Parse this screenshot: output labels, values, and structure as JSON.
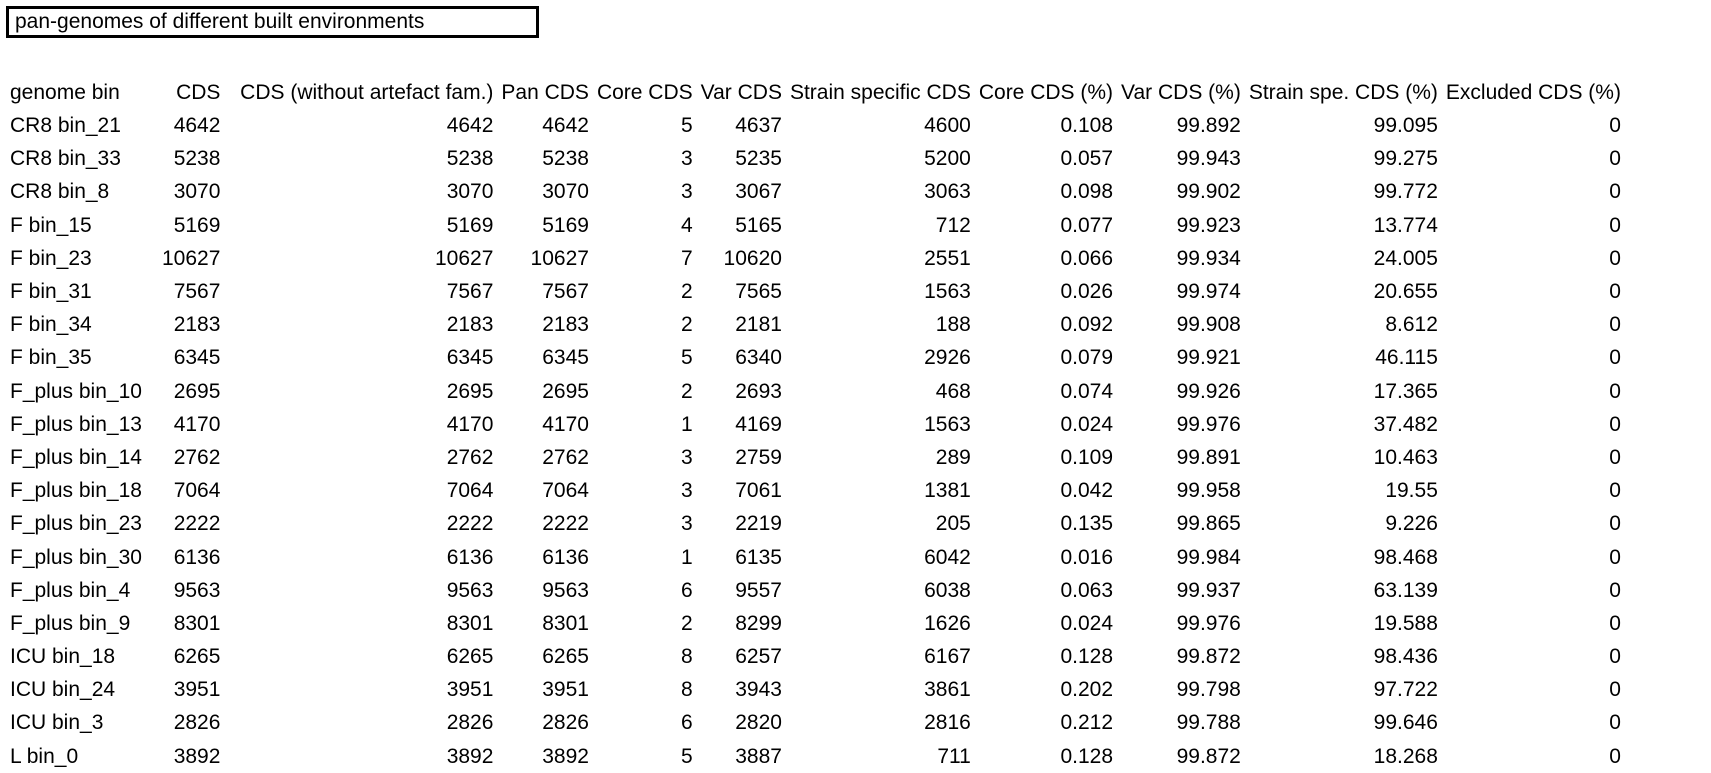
{
  "title": "pan-genomes of different built environments",
  "table": {
    "headers": [
      "genome bin",
      "CDS",
      "CDS (without artefact fam.)",
      "Pan CDS",
      "Core CDS",
      "Var CDS",
      "Strain specific CDS",
      "Core CDS (%)",
      "Var CDS (%)",
      "Strain spe. CDS (%)",
      "Excluded CDS (%)"
    ],
    "rows": [
      [
        "CR8 bin_21",
        "4642",
        "4642",
        "4642",
        "5",
        "4637",
        "4600",
        "0.108",
        "99.892",
        "99.095",
        "0"
      ],
      [
        "CR8 bin_33",
        "5238",
        "5238",
        "5238",
        "3",
        "5235",
        "5200",
        "0.057",
        "99.943",
        "99.275",
        "0"
      ],
      [
        "CR8 bin_8",
        "3070",
        "3070",
        "3070",
        "3",
        "3067",
        "3063",
        "0.098",
        "99.902",
        "99.772",
        "0"
      ],
      [
        "F bin_15",
        "5169",
        "5169",
        "5169",
        "4",
        "5165",
        "712",
        "0.077",
        "99.923",
        "13.774",
        "0"
      ],
      [
        "F bin_23",
        "10627",
        "10627",
        "10627",
        "7",
        "10620",
        "2551",
        "0.066",
        "99.934",
        "24.005",
        "0"
      ],
      [
        "F bin_31",
        "7567",
        "7567",
        "7567",
        "2",
        "7565",
        "1563",
        "0.026",
        "99.974",
        "20.655",
        "0"
      ],
      [
        "F bin_34",
        "2183",
        "2183",
        "2183",
        "2",
        "2181",
        "188",
        "0.092",
        "99.908",
        "8.612",
        "0"
      ],
      [
        "F bin_35",
        "6345",
        "6345",
        "6345",
        "5",
        "6340",
        "2926",
        "0.079",
        "99.921",
        "46.115",
        "0"
      ],
      [
        "F_plus bin_10",
        "2695",
        "2695",
        "2695",
        "2",
        "2693",
        "468",
        "0.074",
        "99.926",
        "17.365",
        "0"
      ],
      [
        "F_plus bin_13",
        "4170",
        "4170",
        "4170",
        "1",
        "4169",
        "1563",
        "0.024",
        "99.976",
        "37.482",
        "0"
      ],
      [
        "F_plus bin_14",
        "2762",
        "2762",
        "2762",
        "3",
        "2759",
        "289",
        "0.109",
        "99.891",
        "10.463",
        "0"
      ],
      [
        "F_plus bin_18",
        "7064",
        "7064",
        "7064",
        "3",
        "7061",
        "1381",
        "0.042",
        "99.958",
        "19.55",
        "0"
      ],
      [
        "F_plus bin_23",
        "2222",
        "2222",
        "2222",
        "3",
        "2219",
        "205",
        "0.135",
        "99.865",
        "9.226",
        "0"
      ],
      [
        "F_plus bin_30",
        "6136",
        "6136",
        "6136",
        "1",
        "6135",
        "6042",
        "0.016",
        "99.984",
        "98.468",
        "0"
      ],
      [
        "F_plus bin_4",
        "9563",
        "9563",
        "9563",
        "6",
        "9557",
        "6038",
        "0.063",
        "99.937",
        "63.139",
        "0"
      ],
      [
        "F_plus bin_9",
        "8301",
        "8301",
        "8301",
        "2",
        "8299",
        "1626",
        "0.024",
        "99.976",
        "19.588",
        "0"
      ],
      [
        "ICU bin_18",
        "6265",
        "6265",
        "6265",
        "8",
        "6257",
        "6167",
        "0.128",
        "99.872",
        "98.436",
        "0"
      ],
      [
        "ICU bin_24",
        "3951",
        "3951",
        "3951",
        "8",
        "3943",
        "3861",
        "0.202",
        "99.798",
        "97.722",
        "0"
      ],
      [
        "ICU bin_3",
        "2826",
        "2826",
        "2826",
        "6",
        "2820",
        "2816",
        "0.212",
        "99.788",
        "99.646",
        "0"
      ],
      [
        "L bin_0",
        "3892",
        "3892",
        "3892",
        "5",
        "3887",
        "711",
        "0.128",
        "99.872",
        "18.268",
        "0"
      ]
    ]
  }
}
